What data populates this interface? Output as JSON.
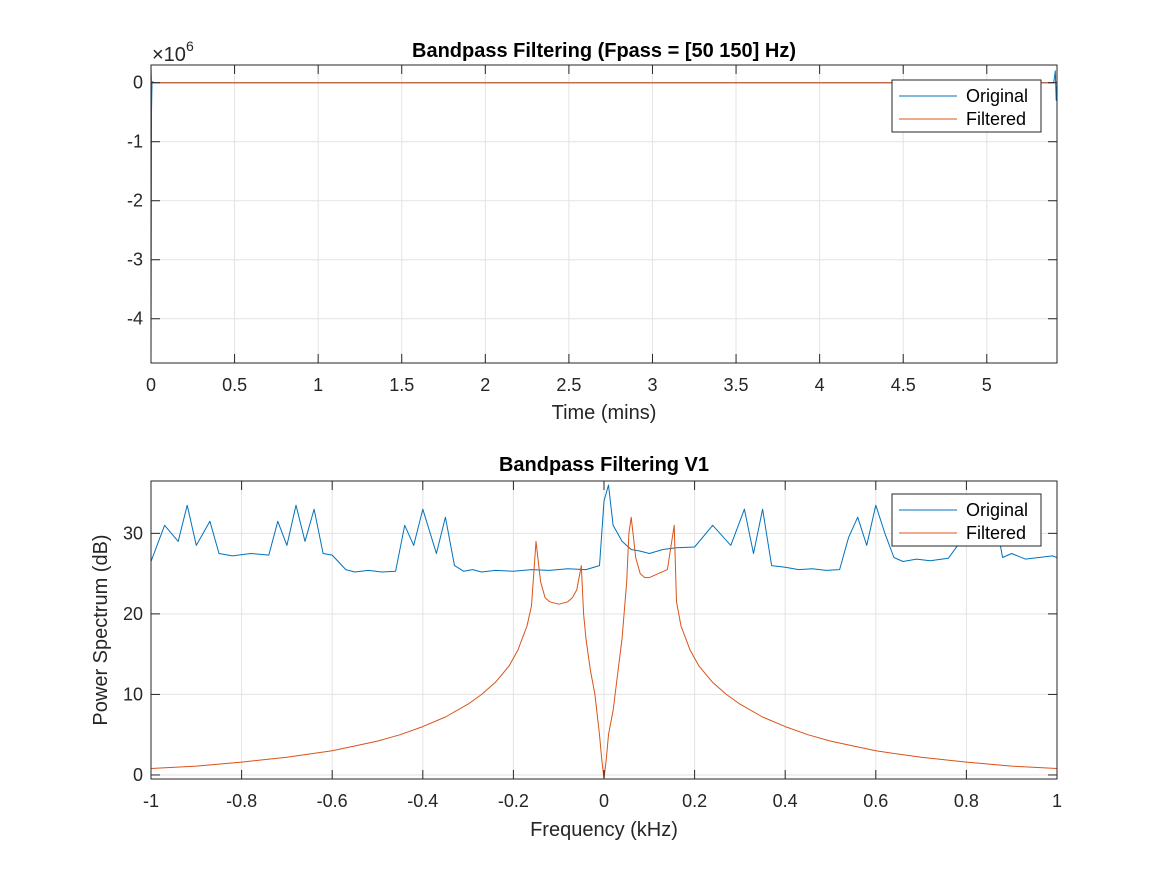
{
  "colors": {
    "original": "#0072BD",
    "filtered": "#D95319",
    "grid": "#e3e3e3",
    "axis": "#262626"
  },
  "chart_data": [
    {
      "type": "line",
      "title": "Bandpass Filtering  (Fpass = [50 150] Hz)",
      "xlabel": "Time (mins)",
      "ylabel": "",
      "xlim": [
        0,
        5.42
      ],
      "ylim": [
        -4.75,
        0.3
      ],
      "y_exponent_label": "×10",
      "y_exponent_power": "6",
      "xticks": [
        0,
        0.5,
        1,
        1.5,
        2,
        2.5,
        3,
        3.5,
        4,
        4.5,
        5
      ],
      "xtick_labels": [
        "0",
        "0.5",
        "1",
        "1.5",
        "2",
        "2.5",
        "3",
        "3.5",
        "4",
        "4.5",
        "5"
      ],
      "yticks": [
        0,
        -1,
        -2,
        -3,
        -4
      ],
      "ytick_labels": [
        "0",
        "-1",
        "-2",
        "-3",
        "-4"
      ],
      "grid": true,
      "legend": [
        "Original",
        "Filtered"
      ],
      "legend_location": "top-right",
      "series": [
        {
          "name": "Original",
          "x": [
            0,
            0.003,
            0.006,
            0.02,
            5.38,
            5.4,
            5.41,
            5.415,
            5.42
          ],
          "y": [
            -4.7,
            -0.5,
            0.0,
            0.0,
            0.0,
            0.0,
            0.2,
            -0.3,
            0.0
          ]
        },
        {
          "name": "Filtered",
          "x": [
            0,
            0.003,
            0.006,
            0.02,
            5.42
          ],
          "y": [
            0.3,
            0.0,
            0.02,
            0.0,
            0.0
          ]
        }
      ]
    },
    {
      "type": "line",
      "title": "Bandpass Filtering V1",
      "xlabel": "Frequency (kHz)",
      "ylabel": "Power Spectrum (dB)",
      "xlim": [
        -1,
        1
      ],
      "ylim": [
        -0.5,
        36.5
      ],
      "xticks": [
        -1,
        -0.8,
        -0.6,
        -0.4,
        -0.2,
        0,
        0.2,
        0.4,
        0.6,
        0.8,
        1
      ],
      "xtick_labels": [
        "-1",
        "-0.8",
        "-0.6",
        "-0.4",
        "-0.2",
        "0",
        "0.2",
        "0.4",
        "0.6",
        "0.8",
        "1"
      ],
      "yticks": [
        0,
        10,
        20,
        30
      ],
      "ytick_labels": [
        "0",
        "10",
        "20",
        "30"
      ],
      "grid": true,
      "legend": [
        "Original",
        "Filtered"
      ],
      "legend_location": "top-right",
      "series": [
        {
          "name": "Original",
          "x": [
            -1,
            -0.97,
            -0.94,
            -0.92,
            -0.9,
            -0.87,
            -0.85,
            -0.82,
            -0.78,
            -0.74,
            -0.72,
            -0.7,
            -0.68,
            -0.66,
            -0.64,
            -0.62,
            -0.6,
            -0.57,
            -0.55,
            -0.52,
            -0.49,
            -0.46,
            -0.44,
            -0.42,
            -0.4,
            -0.37,
            -0.35,
            -0.33,
            -0.31,
            -0.29,
            -0.27,
            -0.24,
            -0.2,
            -0.16,
            -0.12,
            -0.08,
            -0.04,
            -0.01,
            0.0,
            0.01,
            0.02,
            0.04,
            0.06,
            0.08,
            0.1,
            0.13,
            0.16,
            0.2,
            0.24,
            0.28,
            0.31,
            0.33,
            0.35,
            0.37,
            0.4,
            0.43,
            0.46,
            0.49,
            0.52,
            0.54,
            0.56,
            0.58,
            0.6,
            0.62,
            0.64,
            0.66,
            0.69,
            0.72,
            0.76,
            0.8,
            0.82,
            0.84,
            0.86,
            0.88,
            0.9,
            0.93,
            0.96,
            0.99,
            1.0
          ],
          "y": [
            26.5,
            31.0,
            29.0,
            33.5,
            28.5,
            31.5,
            27.5,
            27.2,
            27.5,
            27.3,
            31.5,
            28.5,
            33.5,
            29.0,
            33.0,
            27.5,
            27.3,
            25.5,
            25.2,
            25.4,
            25.2,
            25.3,
            31.0,
            28.5,
            33.0,
            27.5,
            32.0,
            26.0,
            25.3,
            25.5,
            25.2,
            25.4,
            25.3,
            25.5,
            25.4,
            25.6,
            25.5,
            26.0,
            34.0,
            36.0,
            31.0,
            29.0,
            28.0,
            27.8,
            27.5,
            28.0,
            28.2,
            28.3,
            31.0,
            28.5,
            33.0,
            27.5,
            33.0,
            26.0,
            25.8,
            25.5,
            25.6,
            25.4,
            25.5,
            29.5,
            32.0,
            28.5,
            33.5,
            30.0,
            27.0,
            26.5,
            26.8,
            26.6,
            26.9,
            30.0,
            34.0,
            28.5,
            33.0,
            27.0,
            27.5,
            26.8,
            27.0,
            27.2,
            27.0
          ]
        },
        {
          "name": "Filtered",
          "x": [
            -1,
            -0.9,
            -0.8,
            -0.7,
            -0.6,
            -0.5,
            -0.45,
            -0.4,
            -0.35,
            -0.3,
            -0.27,
            -0.24,
            -0.21,
            -0.19,
            -0.17,
            -0.16,
            -0.15,
            -0.14,
            -0.13,
            -0.12,
            -0.1,
            -0.08,
            -0.07,
            -0.06,
            -0.05,
            -0.045,
            -0.04,
            -0.035,
            -0.03,
            -0.02,
            -0.015,
            -0.01,
            -0.005,
            0.0,
            0.005,
            0.01,
            0.02,
            0.03,
            0.04,
            0.05,
            0.055,
            0.06,
            0.07,
            0.08,
            0.09,
            0.1,
            0.12,
            0.14,
            0.155,
            0.16,
            0.17,
            0.19,
            0.21,
            0.24,
            0.27,
            0.3,
            0.35,
            0.4,
            0.45,
            0.5,
            0.6,
            0.7,
            0.8,
            0.9,
            1.0
          ],
          "y": [
            0.8,
            1.1,
            1.6,
            2.2,
            3.0,
            4.2,
            5.0,
            6.0,
            7.2,
            8.8,
            10.0,
            11.5,
            13.5,
            15.5,
            18.5,
            21.0,
            29.0,
            24.0,
            22.0,
            21.5,
            21.2,
            21.5,
            22.0,
            23.0,
            26.0,
            20.0,
            17.0,
            15.0,
            13.0,
            10.0,
            7.5,
            5.0,
            2.0,
            -0.5,
            2.0,
            5.0,
            8.0,
            12.5,
            17.0,
            24.0,
            30.0,
            32.0,
            27.0,
            25.0,
            24.5,
            24.5,
            25.0,
            25.5,
            31.0,
            21.5,
            18.5,
            15.5,
            13.5,
            11.5,
            10.0,
            8.8,
            7.2,
            6.0,
            5.0,
            4.2,
            3.0,
            2.2,
            1.6,
            1.1,
            0.8
          ]
        }
      ]
    }
  ]
}
